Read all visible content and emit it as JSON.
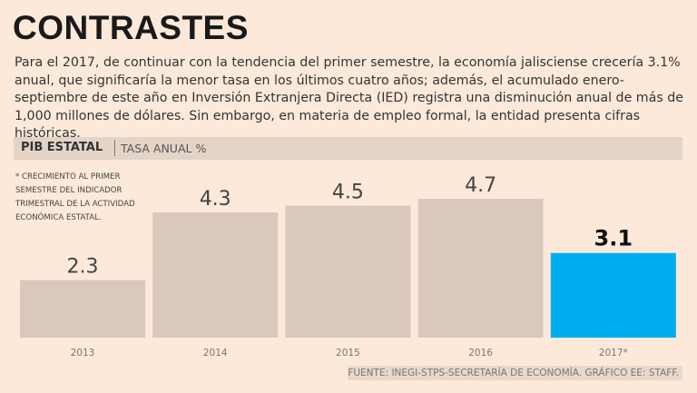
{
  "header": {
    "title": "CONTRASTES",
    "intro": "Para el 2017, de continuar con la tendencia del primer semestre, la economía jalisciense crecería 3.1% anual, que significaría la menor tasa en los últimos cuatro años; además, el acumulado enero-septiembre de este año en Inversión Extranjera Directa (IED) registra una disminución anual de más de 1,000 millones de dólares. Sin embargo, en materia de empleo formal, la entidad presenta cifras históricas."
  },
  "band": {
    "label": "PIB ESTATAL",
    "sublabel": "TASA ANUAL %"
  },
  "note": "* CRECIMIENTO AL PRIMER SEMESTRE DEL INDICADOR TRIMESTRAL DE LA ACTIVIDAD ECONÓMICA ESTATAL.",
  "source": "FUENTE: INEGI-STPS-SECRETARÍA DE ECONOMÍA.   GRÁFICO EE: STAFF.",
  "colors": {
    "bar": "#d9c8bb",
    "highlight": "#00aeef",
    "background": "#fde9d9"
  },
  "chart_data": {
    "type": "bar",
    "title": "PIB ESTATAL",
    "ylabel": "TASA ANUAL %",
    "xlabel": "",
    "categories": [
      "2013",
      "2014",
      "2015",
      "2016",
      "2017*"
    ],
    "values": [
      2.3,
      4.3,
      4.5,
      4.7,
      3.1
    ],
    "value_labels": [
      "2.3",
      "4.3",
      "4.5",
      "4.7",
      "3.1"
    ],
    "highlight_index": 4,
    "ylim": [
      0.6,
      5.8
    ],
    "grid": false
  }
}
